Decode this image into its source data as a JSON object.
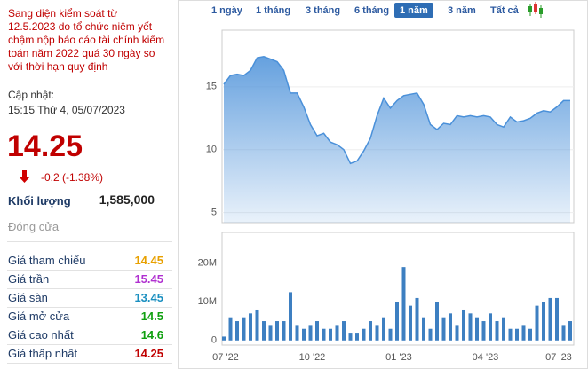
{
  "warning": "Sang diện kiểm soát từ 12.5.2023 do tổ chức niêm yết chậm nộp báo cáo tài chính kiểm toán năm 2022 quá 30 ngày so với thời hạn quy định",
  "update_label": "Cập nhật:",
  "update_time": "15:15 Thứ 4, 05/07/2023",
  "price": "14.25",
  "change": "-0.2 (-1.38%)",
  "volume_label": "Khối lượng",
  "volume": "1,585,000",
  "close_label": "Đóng cửa",
  "quotes": [
    {
      "label": "Giá tham chiếu",
      "value": "14.45",
      "color": "#e8a000"
    },
    {
      "label": "Giá trần",
      "value": "15.45",
      "color": "#b030d0"
    },
    {
      "label": "Giá sàn",
      "value": "13.45",
      "color": "#1a8fc0"
    },
    {
      "label": "Giá mở cửa",
      "value": "14.5",
      "color": "#10a010"
    },
    {
      "label": "Giá cao nhất",
      "value": "14.6",
      "color": "#10a010"
    },
    {
      "label": "Giá thấp nhất",
      "value": "14.25",
      "color": "#c00000"
    }
  ],
  "tabs": [
    {
      "label": "1 ngày",
      "active": false
    },
    {
      "label": "1 tháng",
      "active": false
    },
    {
      "label": "3 tháng",
      "active": false
    },
    {
      "label": "6 tháng",
      "active": false
    },
    {
      "label": "1 năm",
      "active": true
    },
    {
      "label": "3 năm",
      "active": false
    },
    {
      "label": "Tất cả",
      "active": false
    }
  ],
  "chart_data": [
    {
      "type": "area",
      "color": "#4a90d9",
      "grid": true,
      "values": [
        15.2,
        15.9,
        16.0,
        15.9,
        16.3,
        17.3,
        17.4,
        17.2,
        17.0,
        16.3,
        14.5,
        14.5,
        13.4,
        12.0,
        11.1,
        11.3,
        10.6,
        10.4,
        10.0,
        8.9,
        9.1,
        9.9,
        10.9,
        12.7,
        14.1,
        13.3,
        13.9,
        14.3,
        14.4,
        14.5,
        13.6,
        12.0,
        11.6,
        12.1,
        12.0,
        12.7,
        12.6,
        12.7,
        12.6,
        12.7,
        12.6,
        12.0,
        11.8,
        12.6,
        12.2,
        12.3,
        12.5,
        12.9,
        13.1,
        13.0,
        13.4,
        13.9,
        13.9
      ],
      "ylim": [
        4.2,
        19.5
      ],
      "yticks": [
        5,
        10,
        15
      ]
    },
    {
      "type": "bar",
      "color": "#3d7fc1",
      "grid": false,
      "categories": [
        "07 '22",
        null,
        null,
        null,
        null,
        null,
        null,
        null,
        null,
        null,
        null,
        null,
        null,
        "10 '22",
        null,
        null,
        null,
        null,
        null,
        null,
        null,
        null,
        null,
        null,
        null,
        null,
        "01 '23",
        null,
        null,
        null,
        null,
        null,
        null,
        null,
        null,
        null,
        null,
        null,
        null,
        "04 '23",
        null,
        null,
        null,
        null,
        null,
        null,
        null,
        null,
        null,
        null,
        "07 '23",
        null,
        null
      ],
      "values": [
        1000000,
        6000000,
        5000000,
        6000000,
        7000000,
        8000000,
        5000000,
        4000000,
        5000000,
        5000000,
        12500000,
        4000000,
        3000000,
        4000000,
        5000000,
        3000000,
        3000000,
        4000000,
        5000000,
        2000000,
        2000000,
        3000000,
        5000000,
        4000000,
        6000000,
        3000000,
        10000000,
        19000000,
        9000000,
        11000000,
        6000000,
        3000000,
        10000000,
        6000000,
        7000000,
        4000000,
        8000000,
        7000000,
        6000000,
        5000000,
        7000000,
        5000000,
        6000000,
        3000000,
        3000000,
        4000000,
        3000000,
        9000000,
        10000000,
        11000000,
        11000000,
        4000000,
        5000000
      ],
      "ylim": [
        -1200000,
        28000000
      ],
      "yticks": [
        0,
        {
          "value": 10000000,
          "label": "10M"
        },
        {
          "value": 20000000,
          "label": "20M"
        }
      ]
    }
  ]
}
